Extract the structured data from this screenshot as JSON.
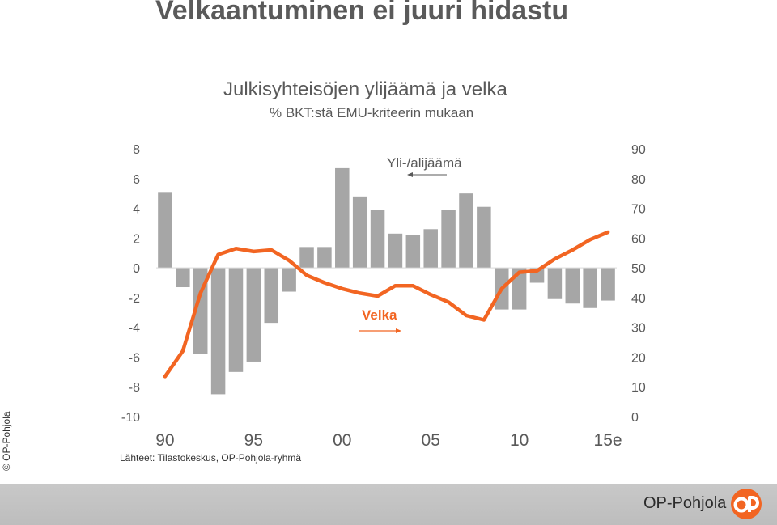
{
  "slide": {
    "title": "Velkaantuminen ei juuri hidastu",
    "source": "Lähteet: Tilastokeskus, OP-Pohjola-ryhmä",
    "copyright": "© OP-Pohjola",
    "brand_name": "OP-Pohjola",
    "brand_color": "#f26522"
  },
  "chart_data": {
    "type": "bar+line",
    "title": "Julkisyhteisöjen ylijäämä ja velka",
    "subtitle": "% BKT:stä EMU-kriteerin mukaan",
    "x_tick_labels": [
      "90",
      "95",
      "00",
      "05",
      "10",
      "15e"
    ],
    "categories": [
      "1990",
      "1991",
      "1992",
      "1993",
      "1994",
      "1995",
      "1996",
      "1997",
      "1998",
      "1999",
      "2000",
      "2001",
      "2002",
      "2003",
      "2004",
      "2005",
      "2006",
      "2007",
      "2008",
      "2009",
      "2010",
      "2011",
      "2012",
      "2013",
      "2014",
      "2015"
    ],
    "y_left": {
      "min": -10,
      "max": 8,
      "step": 2,
      "labels": [
        "-10",
        "-8",
        "-6",
        "-4",
        "-2",
        "0",
        "2",
        "4",
        "6",
        "8"
      ]
    },
    "y_right": {
      "min": 0,
      "max": 90,
      "step": 10,
      "labels": [
        "0",
        "10",
        "20",
        "30",
        "40",
        "50",
        "60",
        "70",
        "80",
        "90"
      ]
    },
    "series": [
      {
        "name": "Yli-/alijäämä",
        "kind": "bar",
        "axis": "left",
        "color": "#a6a6a6",
        "values": [
          5.1,
          -1.3,
          -5.8,
          -8.5,
          -7.0,
          -6.3,
          -3.7,
          -1.6,
          1.4,
          1.4,
          6.7,
          4.8,
          3.9,
          2.3,
          2.2,
          2.6,
          3.9,
          5.0,
          4.1,
          -2.8,
          -2.8,
          -1.0,
          -2.1,
          -2.4,
          -2.7,
          -2.2
        ]
      },
      {
        "name": "Velka",
        "kind": "line",
        "axis": "right",
        "color": "#f26522",
        "values": [
          13.5,
          22,
          41.5,
          54.5,
          56.5,
          55.5,
          56,
          52.5,
          47.5,
          45,
          43,
          41.5,
          40.5,
          44,
          44,
          41,
          38.5,
          34,
          32.5,
          43,
          48.5,
          49,
          53,
          56,
          59.5,
          62
        ]
      }
    ],
    "annotations": [
      {
        "text": "Yli-/alijäämä",
        "arrow": "left"
      },
      {
        "text": "Velka",
        "arrow": "right"
      }
    ],
    "grid": false
  }
}
